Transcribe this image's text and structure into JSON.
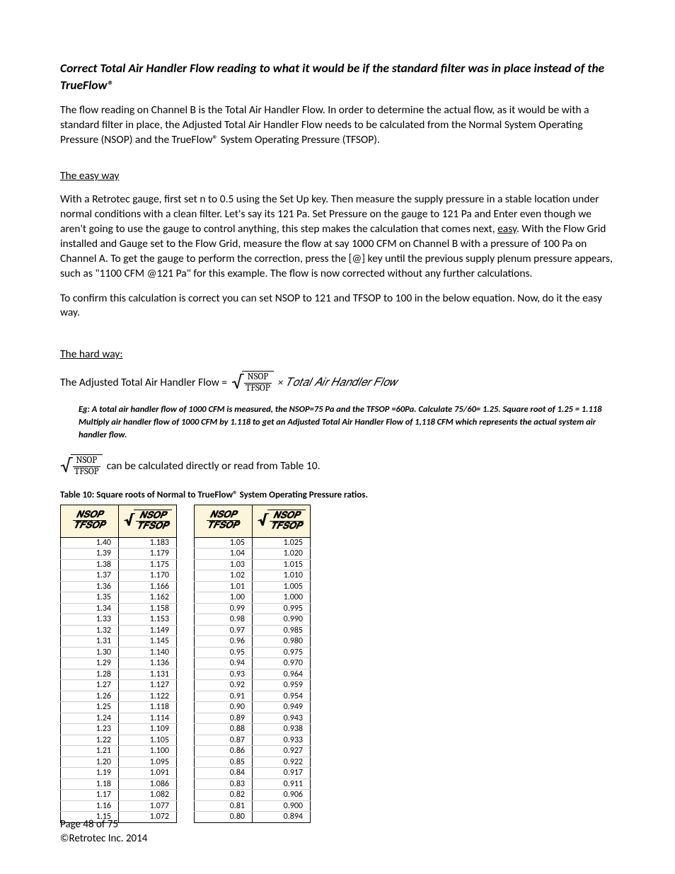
{
  "heading": "Correct Total Air Handler Flow reading to what it would be if the standard filter was in place instead of the TrueFlow®",
  "intro": "The flow reading on Channel B is the Total Air Handler Flow.  In order to determine the actual flow, as it would be with a standard filter in place, the Adjusted Total Air Handler Flow needs to be calculated from the Normal System Operating Pressure (NSOP) and the TrueFlow® System Operating Pressure (TFSOP).",
  "easy": {
    "title": "The easy way",
    "p1_a": "With a Retrotec gauge, first set n to 0.5 using the Set Up key. Then measure the supply pressure in a stable location under normal conditions with a clean filter.  Let's say its 121 Pa.  Set Pressure on the gauge to 121 Pa and Enter even though we aren't going to use the gauge to control anything, this step makes the calculation that comes next, ",
    "p1_easy": "easy",
    "p1_b": ". With the Flow Grid installed and Gauge set to the Flow Grid, measure the flow at say 1000 CFM on Channel B with a pressure of 100 Pa on Channel A. To get the gauge to perform the correction, press the [@] key until the previous supply plenum pressure appears, such as \"1100 CFM @121 Pa\" for this example. The flow is now corrected without any further calculations.",
    "p2": "To confirm this calculation is correct you can set NSOP to 121 and TFSOP to 100 in the below equation. Now, do it the easy way."
  },
  "hard": {
    "title": "The hard way:",
    "lhs": "The Adjusted Total Air Handler Flow =",
    "nsop": "NSOP",
    "tfsop": "TFSOP",
    "rhs_tail": " × 𝑇𝑜𝑡𝑎𝑙 𝐴𝑖𝑟 𝐻𝑎𝑛𝑑𝑙𝑒𝑟 𝐹𝑙𝑜𝑤",
    "example": "Eg:  A total  air handler flow of 1000 CFM is measured, the NSOP=75 Pa and the TFSOP =60Pa.  Calculate 75/60= 1.25.   Square root of 1.25 = 1.118  Multiply air handler flow of 1000 CFM by 1.118 to get an Adjusted Total Air Handler Flow of 1,118 CFM which represents the actual system air handler flow.",
    "note_tail": " can be calculated directly or read from Table 10."
  },
  "table": {
    "caption": "Table 10:  Square roots of Normal to TrueFlow® System Operating Pressure ratios.",
    "header_num": "𝑵𝑺𝑶𝑷",
    "header_den": "𝑻𝑭𝑺𝑶𝑷",
    "left": [
      [
        "1.40",
        "1.183"
      ],
      [
        "1.39",
        "1.179"
      ],
      [
        "1.38",
        "1.175"
      ],
      [
        "1.37",
        "1.170"
      ],
      [
        "1.36",
        "1.166"
      ],
      [
        "1.35",
        "1.162"
      ],
      [
        "1.34",
        "1.158"
      ],
      [
        "1.33",
        "1.153"
      ],
      [
        "1.32",
        "1.149"
      ],
      [
        "1.31",
        "1.145"
      ],
      [
        "1.30",
        "1.140"
      ],
      [
        "1.29",
        "1.136"
      ],
      [
        "1.28",
        "1.131"
      ],
      [
        "1.27",
        "1.127"
      ],
      [
        "1.26",
        "1.122"
      ],
      [
        "1.25",
        "1.118"
      ],
      [
        "1.24",
        "1.114"
      ],
      [
        "1.23",
        "1.109"
      ],
      [
        "1.22",
        "1.105"
      ],
      [
        "1.21",
        "1.100"
      ],
      [
        "1.20",
        "1.095"
      ],
      [
        "1.19",
        "1.091"
      ],
      [
        "1.18",
        "1.086"
      ],
      [
        "1.17",
        "1.082"
      ],
      [
        "1.16",
        "1.077"
      ],
      [
        "1.15",
        "1.072"
      ]
    ],
    "right": [
      [
        "1.05",
        "1.025"
      ],
      [
        "1.04",
        "1.020"
      ],
      [
        "1.03",
        "1.015"
      ],
      [
        "1.02",
        "1.010"
      ],
      [
        "1.01",
        "1.005"
      ],
      [
        "1.00",
        "1.000"
      ],
      [
        "0.99",
        "0.995"
      ],
      [
        "0.98",
        "0.990"
      ],
      [
        "0.97",
        "0.985"
      ],
      [
        "0.96",
        "0.980"
      ],
      [
        "0.95",
        "0.975"
      ],
      [
        "0.94",
        "0.970"
      ],
      [
        "0.93",
        "0.964"
      ],
      [
        "0.92",
        "0.959"
      ],
      [
        "0.91",
        "0.954"
      ],
      [
        "0.90",
        "0.949"
      ],
      [
        "0.89",
        "0.943"
      ],
      [
        "0.88",
        "0.938"
      ],
      [
        "0.87",
        "0.933"
      ],
      [
        "0.86",
        "0.927"
      ],
      [
        "0.85",
        "0.922"
      ],
      [
        "0.84",
        "0.917"
      ],
      [
        "0.83",
        "0.911"
      ],
      [
        "0.82",
        "0.906"
      ],
      [
        "0.81",
        "0.900"
      ],
      [
        "0.80",
        "0.894"
      ]
    ],
    "colors": {
      "header_bg": "#fdf5d9",
      "border": "#000000",
      "row_border": "#cccccc"
    }
  },
  "footer": {
    "page": "Page 48 of 75",
    "copyright": "©Retrotec Inc. 2014"
  }
}
